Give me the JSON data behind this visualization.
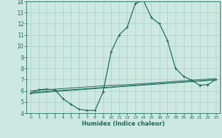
{
  "xlabel": "Humidex (Indice chaleur)",
  "xlim": [
    -0.5,
    23.5
  ],
  "ylim": [
    4,
    14
  ],
  "xticks": [
    0,
    1,
    2,
    3,
    4,
    5,
    6,
    7,
    8,
    9,
    10,
    11,
    12,
    13,
    14,
    15,
    16,
    17,
    18,
    19,
    20,
    21,
    22,
    23
  ],
  "yticks": [
    4,
    5,
    6,
    7,
    8,
    9,
    10,
    11,
    12,
    13,
    14
  ],
  "bg_color": "#cce8e0",
  "grid_color": "#aacec6",
  "line_color": "#1a6b5a",
  "line_main": {
    "x": [
      0,
      1,
      2,
      3,
      4,
      5,
      6,
      7,
      8,
      9,
      10,
      11,
      12,
      13,
      14,
      15,
      16,
      17,
      18,
      19,
      20,
      21,
      22,
      23
    ],
    "y": [
      5.8,
      6.1,
      6.15,
      6.1,
      5.3,
      4.8,
      4.35,
      4.25,
      4.25,
      5.9,
      9.5,
      11.0,
      11.7,
      13.8,
      14.1,
      12.55,
      12.0,
      10.5,
      8.0,
      7.3,
      6.95,
      6.5,
      6.55,
      7.0
    ]
  },
  "line_a": {
    "x": [
      0,
      1,
      2,
      3,
      4,
      5,
      6,
      7,
      8,
      9,
      10,
      11,
      12,
      13,
      14,
      15,
      16,
      17,
      18,
      19,
      20,
      21,
      22,
      23
    ],
    "y": [
      6.0,
      6.05,
      6.1,
      6.15,
      6.2,
      6.25,
      6.3,
      6.35,
      6.4,
      6.45,
      6.5,
      6.52,
      6.55,
      6.6,
      6.65,
      6.7,
      6.75,
      6.8,
      6.85,
      6.9,
      6.95,
      7.0,
      7.05,
      7.1
    ]
  },
  "line_b": {
    "x": [
      0,
      1,
      2,
      3,
      4,
      5,
      6,
      7,
      8,
      9,
      10,
      11,
      12,
      13,
      14,
      15,
      16,
      17,
      18,
      19,
      20,
      21,
      22,
      23
    ],
    "y": [
      5.85,
      5.9,
      5.95,
      6.0,
      6.05,
      6.1,
      6.15,
      6.2,
      6.25,
      6.3,
      6.35,
      6.4,
      6.45,
      6.5,
      6.55,
      6.6,
      6.65,
      6.7,
      6.75,
      6.8,
      6.85,
      6.9,
      6.95,
      7.0
    ]
  },
  "line_c": {
    "x": [
      0,
      1,
      2,
      3,
      4,
      5,
      6,
      7,
      8,
      9,
      10,
      11,
      12,
      13,
      14,
      15,
      16,
      17,
      18,
      19,
      20,
      21,
      22,
      23
    ],
    "y": [
      5.75,
      5.82,
      5.88,
      5.94,
      5.99,
      6.04,
      6.09,
      6.14,
      6.2,
      6.25,
      6.3,
      6.36,
      6.41,
      6.46,
      6.51,
      6.56,
      6.61,
      6.67,
      6.72,
      6.77,
      6.82,
      6.87,
      6.92,
      6.97
    ]
  }
}
